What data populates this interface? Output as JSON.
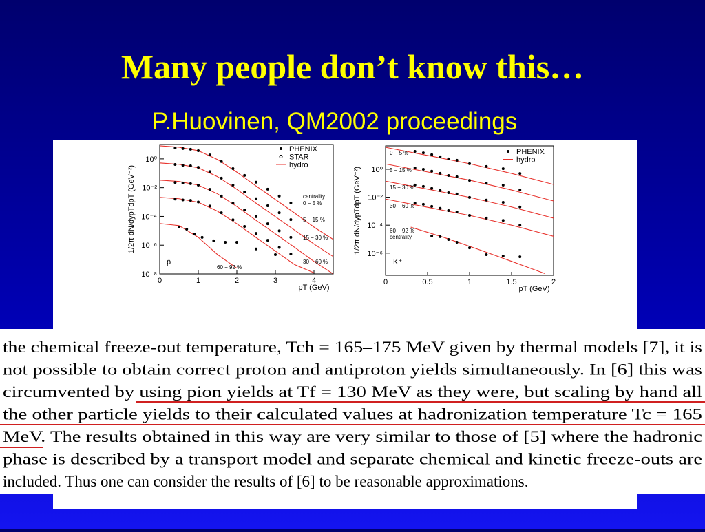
{
  "title": "Many people don’t know this…",
  "subtitle": "P.Huovinen, QM2002 proceedings",
  "chart_data": [
    {
      "type": "scatter",
      "log_y": true,
      "xlabel": "pT (GeV)",
      "ylabel": "1/2π dN/dypTdpT (GeV⁻²)",
      "particle": "p̄",
      "centrality_label": "centrality",
      "xlim": [
        0,
        4.5
      ],
      "ylim": [
        1e-08,
        10
      ],
      "xticks": [
        0,
        1,
        2,
        3,
        4
      ],
      "yticks": [
        {
          "value": 1,
          "label": "10⁰"
        },
        {
          "value": 0.01,
          "label": "10⁻²"
        },
        {
          "value": 0.0001,
          "label": "10⁻⁴"
        },
        {
          "value": 1e-06,
          "label": "10⁻⁶"
        },
        {
          "value": 1e-08,
          "label": "10⁻⁸"
        }
      ],
      "legend": [
        {
          "label": "PHENIX",
          "marker": "dot"
        },
        {
          "label": "STAR",
          "marker": "ring"
        },
        {
          "label": "hydro",
          "marker": "line"
        }
      ],
      "point_color": "#000000",
      "hydro_color": "#e8322c",
      "series": [
        {
          "name": "0 − 5 %",
          "x": [
            0.4,
            0.6,
            0.8,
            1.0,
            1.3,
            1.6,
            1.9,
            2.2,
            2.5,
            2.8,
            3.1,
            3.4
          ],
          "values": [
            5.8,
            5.2,
            4.7,
            3.7,
            1.9,
            0.65,
            0.21,
            0.071,
            0.024,
            0.0078,
            0.0026,
            0.00087
          ],
          "hydro_x": [
            0,
            0.5,
            1,
            1.5,
            2,
            2.5,
            3,
            3.5,
            4,
            4.5
          ],
          "hydro": [
            8.1,
            6.5,
            3.7,
            0.9,
            0.12,
            0.013,
            0.0015,
            0.00017,
            1.8e-05,
            2.5e-06
          ]
        },
        {
          "name": "5 − 15 %",
          "x": [
            0.4,
            0.6,
            0.8,
            1.0,
            1.3,
            1.6,
            1.9,
            2.2,
            2.5,
            2.8,
            3.1,
            3.4
          ],
          "values": [
            0.41,
            0.36,
            0.33,
            0.26,
            0.13,
            0.046,
            0.015,
            0.005,
            0.0017,
            0.00055,
            0.00018,
            6e-05
          ],
          "hydro_x": [
            0,
            0.5,
            1,
            1.5,
            2,
            2.5,
            3,
            3.5,
            4,
            4.5
          ],
          "hydro": [
            0.52,
            0.42,
            0.24,
            0.058,
            0.0077,
            0.00083,
            9.6e-05,
            1.1e-05,
            1.2e-06,
            1.6e-07
          ]
        },
        {
          "name": "15 − 30 %",
          "x": [
            0.4,
            0.6,
            0.8,
            1.0,
            1.3,
            1.6,
            1.9,
            2.2,
            2.5,
            2.8,
            3.1,
            3.4
          ],
          "values": [
            0.023,
            0.021,
            0.019,
            0.015,
            0.0076,
            0.0026,
            0.00083,
            0.00028,
            9.5e-05,
            3.1e-05,
            1e-05,
            3.5e-06
          ],
          "hydro_x": [
            0,
            0.5,
            1,
            1.5,
            2,
            2.5,
            3,
            3.5,
            4,
            4.5
          ],
          "hydro": [
            0.033,
            0.027,
            0.015,
            0.0037,
            0.00049,
            5.3e-05,
            6.2e-06,
            7e-07,
            7.4e-08,
            1e-08
          ]
        },
        {
          "name": "30 − 60 %",
          "x": [
            0.4,
            0.6,
            0.8,
            1.0,
            1.3,
            1.6,
            1.9,
            2.2,
            2.5,
            2.8,
            3.1,
            3.4
          ],
          "values": [
            0.0016,
            0.0014,
            0.0013,
            0.001,
            0.00053,
            0.00018,
            5.8e-05,
            2e-05,
            6.6e-06,
            2.2e-06,
            7e-07,
            2.4e-07
          ],
          "hydro_x": [
            0,
            0.5,
            1,
            1.5,
            2,
            2.5,
            3,
            3.5,
            4
          ],
          "hydro": [
            0.0021,
            0.0017,
            0.00096,
            0.00023,
            3.1e-05,
            3.4e-06,
            3.9e-07,
            4.4e-08,
            1.2e-08
          ]
        },
        {
          "name": "60 − 92 %",
          "x": [
            0.5,
            0.7,
            0.9,
            1.1,
            1.4,
            1.7,
            2.0,
            2.5,
            3.0
          ],
          "values": [
            1.8e-05,
            1.3e-05,
            6e-06,
            3.5e-06,
            2e-06,
            1.6e-06,
            1.6e-06,
            5.4e-07,
            2.2e-07
          ],
          "hydro_x": [
            0,
            0.5,
            1,
            1.5,
            2
          ],
          "hydro": [
            3.2e-05,
            2.3e-05,
            3.5e-06,
            2.2e-07,
            2.5e-08
          ]
        }
      ]
    },
    {
      "type": "scatter",
      "log_y": true,
      "xlabel": "pT (GeV)",
      "ylabel": "1/2π dN/dypTdpT (GeV⁻²)",
      "particle": "K⁺",
      "centrality_label": "centrality",
      "xlim": [
        0,
        2
      ],
      "ylim": [
        2.6e-08,
        47
      ],
      "xticks": [
        0,
        0.5,
        1,
        1.5,
        2
      ],
      "yticks": [
        {
          "value": 1,
          "label": "10⁰"
        },
        {
          "value": 0.01,
          "label": "10⁻²"
        },
        {
          "value": 0.0001,
          "label": "10⁻⁴"
        },
        {
          "value": 1e-06,
          "label": "10⁻⁶"
        }
      ],
      "legend": [
        {
          "label": "PHENIX",
          "marker": "dot"
        },
        {
          "label": "hydro",
          "marker": "line"
        }
      ],
      "point_color": "#000000",
      "hydro_color": "#e8322c",
      "series": [
        {
          "name": "0 − 5 %",
          "x": [
            0.35,
            0.45,
            0.55,
            0.65,
            0.75,
            0.85,
            1.0,
            1.2,
            1.4,
            1.6
          ],
          "values": [
            19,
            15,
            11,
            7.8,
            5.5,
            4.4,
            2.5,
            1.6,
            1.1,
            0.5
          ],
          "hydro_x": [
            0,
            0.5,
            1,
            1.5,
            2
          ],
          "hydro": [
            37,
            9.7,
            2.5,
            0.5,
            0.082
          ]
        },
        {
          "name": "5 − 15 %",
          "x": [
            0.35,
            0.45,
            0.55,
            0.65,
            0.75,
            0.85,
            1.0,
            1.2,
            1.4,
            1.6
          ],
          "values": [
            1.25,
            1.0,
            0.73,
            0.51,
            0.36,
            0.29,
            0.16,
            0.1,
            0.073,
            0.033
          ],
          "hydro_x": [
            0,
            0.5,
            1,
            1.5,
            2
          ],
          "hydro": [
            2.4,
            0.64,
            0.165,
            0.033,
            0.0054
          ]
        },
        {
          "name": "15 − 30 %",
          "x": [
            0.35,
            0.45,
            0.55,
            0.65,
            0.75,
            0.85,
            1.0,
            1.2,
            1.4,
            1.6
          ],
          "values": [
            0.074,
            0.059,
            0.043,
            0.03,
            0.021,
            0.017,
            0.0097,
            0.0062,
            0.0043,
            0.002
          ],
          "hydro_x": [
            0,
            0.5,
            1,
            1.5,
            2
          ],
          "hydro": [
            0.14,
            0.038,
            0.0098,
            0.002,
            0.00032
          ]
        },
        {
          "name": "30 − 60 %",
          "x": [
            0.35,
            0.45,
            0.55,
            0.65,
            0.75,
            0.85,
            1.0,
            1.2,
            1.4,
            1.6
          ],
          "values": [
            0.0038,
            0.0031,
            0.0022,
            0.0016,
            0.0011,
            0.00088,
            0.0005,
            0.00032,
            0.00022,
            0.0001
          ],
          "hydro_x": [
            0,
            0.5,
            1,
            1.5,
            2
          ],
          "hydro": [
            0.0074,
            0.0019,
            0.0005,
            0.0001,
            1.6e-05
          ]
        },
        {
          "name": "60 − 92 %",
          "x": [
            0.55,
            0.65,
            0.75,
            0.85,
            1.0,
            1.2,
            1.4,
            1.6
          ],
          "values": [
            1.7e-05,
            1.5e-05,
            9.5e-06,
            6e-06,
            2.4e-06,
            7.8e-07,
            6.2e-07,
            5.5e-07
          ],
          "hydro_x": [
            0.3,
            0.7,
            1.1,
            1.5,
            1.9
          ],
          "hydro": [
            7.3e-05,
            1.3e-05,
            1.9e-06,
            2.6e-07,
            3.4e-08
          ]
        }
      ]
    }
  ],
  "excerpt": {
    "lines": [
      "the chemical freeze-out temperature, Tch = 165–175 MeV given by thermal models [7], it is",
      "not possible to obtain correct proton and antiproton yields simultaneously. In [6] this was",
      "circumvented by using pion yields at Tf = 130 MeV as they were, but scaling by hand all",
      "the other particle yields to their calculated values at hadronization temperature Tc = 165",
      "MeV. The results obtained in this way are very similar to those of [5] where the hadronic",
      "phase is described by a transport model and separate chemical and kinetic freeze-outs are",
      "included. Thus one can consider the results of [6] to be reasonable approximations."
    ]
  }
}
